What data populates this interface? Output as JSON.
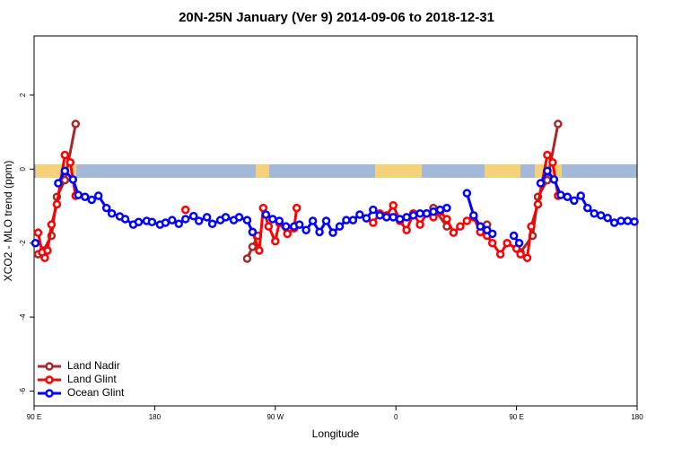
{
  "chart_data": {
    "type": "line",
    "title": "20N-25N January (Ver 9)   2014-09-06 to 2018-12-31",
    "xlabel": "Longitude",
    "ylabel": "XCO2 - MLO trend (ppm)",
    "xlim": [
      90,
      540
    ],
    "ylim": [
      -6.4,
      3.6
    ],
    "xticks": [
      {
        "value": 90,
        "label": "90 E"
      },
      180,
      {
        "value": 270,
        "label": "90 W"
      },
      {
        "value": 360,
        "label": "0"
      },
      {
        "value": 450,
        "label": "90 E"
      },
      {
        "value": 540,
        "label": "180"
      }
    ],
    "yticks": [
      -6,
      -4,
      -2,
      0,
      2
    ],
    "legend": "bottomleft",
    "series": [
      {
        "name": "Land Nadir",
        "color": "#a52a2a",
        "x": [
          93,
          97,
          103,
          107,
          113,
          121,
          null,
          249,
          253,
          257,
          null,
          388,
          398,
          null,
          428,
          null,
          453,
          462,
          466,
          473,
          481
        ],
        "values": [
          -2.3,
          -2.2,
          -1.8,
          -0.75,
          -0.3,
          1.22,
          null,
          -2.42,
          -2.1,
          -1.8,
          null,
          -1.05,
          -1.55,
          null,
          -1.5,
          null,
          -2.25,
          -1.8,
          -0.75,
          -0.3,
          1.22
        ]
      },
      {
        "name": "Land Glint",
        "color": "#ff0000",
        "x": [
          93,
          96,
          98,
          100,
          103,
          107,
          113,
          117,
          121,
          null,
          203,
          null,
          253,
          258,
          261,
          265,
          270,
          273,
          279,
          284,
          286,
          null,
          343,
          348,
          353,
          358,
          363,
          368,
          373,
          378,
          383,
          388,
          393,
          398,
          403,
          408,
          413,
          418,
          423,
          428,
          432,
          438,
          443,
          450,
          453,
          458,
          461,
          466,
          473,
          477,
          481
        ],
        "values": [
          -1.72,
          -2.25,
          -2.4,
          -2.2,
          -1.5,
          -0.95,
          0.38,
          0.18,
          -0.72,
          null,
          -1.1,
          null,
          -1.7,
          -2.2,
          -1.05,
          -1.55,
          -1.95,
          -1.45,
          -1.75,
          -1.6,
          -1.05,
          null,
          -1.45,
          -1.2,
          -1.25,
          -0.98,
          -1.4,
          -1.65,
          -1.2,
          -1.5,
          -1.2,
          -1.3,
          -1.15,
          -1.35,
          -1.72,
          -1.55,
          -1.4,
          -1.3,
          -1.7,
          -1.8,
          -2.0,
          -2.3,
          -2.0,
          -2.15,
          -2.3,
          -2.4,
          -1.55,
          -0.95,
          0.38,
          0.18,
          -0.72
        ]
      },
      {
        "name": "Ocean Glint",
        "color": "#0000ff",
        "x": [
          91,
          null,
          108,
          113,
          119,
          123,
          128,
          133,
          138,
          144,
          148,
          154,
          158,
          164,
          168,
          174,
          178,
          184,
          188,
          193,
          198,
          203,
          209,
          213,
          219,
          223,
          229,
          233,
          239,
          243,
          249,
          253,
          null,
          263,
          268,
          273,
          278,
          284,
          288,
          293,
          298,
          303,
          308,
          313,
          318,
          323,
          328,
          333,
          338,
          343,
          348,
          353,
          358,
          363,
          368,
          373,
          378,
          383,
          388,
          393,
          398,
          null,
          413,
          418,
          423,
          428,
          432,
          null,
          448,
          452,
          null,
          468,
          473,
          478,
          483,
          488,
          493,
          498,
          503,
          508,
          513,
          518,
          523,
          528,
          533,
          538
        ],
        "values": [
          -2.0,
          null,
          -0.38,
          -0.05,
          -0.28,
          -0.7,
          -0.75,
          -0.83,
          -0.72,
          -1.05,
          -1.2,
          -1.28,
          -1.35,
          -1.5,
          -1.43,
          -1.4,
          -1.43,
          -1.5,
          -1.45,
          -1.38,
          -1.48,
          -1.35,
          -1.27,
          -1.4,
          -1.3,
          -1.48,
          -1.38,
          -1.3,
          -1.38,
          -1.3,
          -1.38,
          -1.7,
          null,
          -1.23,
          -1.35,
          -1.4,
          -1.55,
          -1.55,
          -1.5,
          -1.65,
          -1.4,
          -1.7,
          -1.4,
          -1.72,
          -1.55,
          -1.38,
          -1.38,
          -1.23,
          -1.33,
          -1.1,
          -1.25,
          -1.3,
          -1.3,
          -1.35,
          -1.3,
          -1.25,
          -1.2,
          -1.2,
          -1.15,
          -1.1,
          -1.05,
          null,
          -0.65,
          -1.25,
          -1.55,
          -1.65,
          -1.75,
          null,
          -1.8,
          -2.0,
          null,
          -0.38,
          -0.05,
          -0.28,
          -0.7,
          -0.75,
          -0.85,
          -0.72,
          -1.05,
          -1.2,
          -1.25,
          -1.32,
          -1.45,
          -1.4,
          -1.4,
          -1.42
        ]
      }
    ]
  }
}
